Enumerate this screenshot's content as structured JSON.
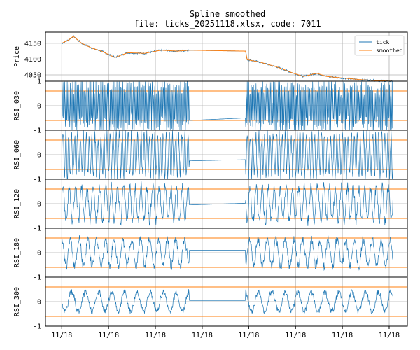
{
  "chart_data": {
    "type": "line",
    "title": "Spline smoothed",
    "subtitle": "file: ticks_20251118.xlsx, code: 7011",
    "x_tick_labels": [
      "11/18",
      "11/18",
      "11/18",
      "11/18",
      "11/18",
      "11/18",
      "11/18",
      "11/18"
    ],
    "legend": {
      "entries": [
        "tick",
        "smoothed"
      ],
      "placement": "upper right"
    },
    "colors": {
      "tick": "#1f77b4",
      "smoothed": "#ff7f0e",
      "threshold": "#ff7f0e",
      "grid": "#b0b0b0"
    },
    "price_panel": {
      "ylabel": "Price",
      "yticks": [
        4050,
        4100,
        4150
      ],
      "ylim": [
        4030,
        4185
      ],
      "session_break": [
        0.385,
        0.555
      ],
      "anchors": [
        [
          0.0,
          4150
        ],
        [
          0.02,
          4160
        ],
        [
          0.035,
          4172
        ],
        [
          0.06,
          4150
        ],
        [
          0.09,
          4135
        ],
        [
          0.12,
          4125
        ],
        [
          0.16,
          4105
        ],
        [
          0.2,
          4120
        ],
        [
          0.25,
          4118
        ],
        [
          0.3,
          4128
        ],
        [
          0.35,
          4125
        ],
        [
          0.385,
          4128
        ],
        [
          0.555,
          4125
        ],
        [
          0.56,
          4098
        ],
        [
          0.6,
          4090
        ],
        [
          0.65,
          4075
        ],
        [
          0.7,
          4055
        ],
        [
          0.73,
          4045
        ],
        [
          0.77,
          4055
        ],
        [
          0.8,
          4045
        ],
        [
          0.85,
          4040
        ],
        [
          0.9,
          4035
        ],
        [
          0.95,
          4032
        ],
        [
          1.0,
          4030
        ]
      ]
    },
    "rsi_panels": [
      {
        "ylabel": "RSI_030",
        "yticks": [
          -1,
          0,
          1
        ],
        "ylim": [
          -1,
          1
        ],
        "thresholds": [
          -0.6,
          0.6
        ],
        "flat_from": -0.6,
        "flat_to": -0.5,
        "wavelength": 0.004,
        "amplitude": 0.95,
        "seed": 30
      },
      {
        "ylabel": "RSI_060",
        "yticks": [
          -1,
          0,
          1
        ],
        "ylim": [
          -1,
          1
        ],
        "thresholds": [
          -0.6,
          0.6
        ],
        "flat_from": -0.25,
        "flat_to": -0.2,
        "wavelength": 0.009,
        "amplitude": 0.85,
        "seed": 60
      },
      {
        "ylabel": "RSI_120",
        "yticks": [
          -1,
          0,
          1
        ],
        "ylim": [
          -1,
          1
        ],
        "thresholds": [
          -0.6,
          0.6
        ],
        "flat_from": -0.05,
        "flat_to": 0.02,
        "wavelength": 0.018,
        "amplitude": 0.7,
        "seed": 120
      },
      {
        "ylabel": "RSI_180",
        "yticks": [
          -1,
          0,
          1
        ],
        "ylim": [
          -1,
          1
        ],
        "thresholds": [
          -0.6,
          0.6
        ],
        "flat_from": 0.1,
        "flat_to": 0.1,
        "wavelength": 0.026,
        "amplitude": 0.55,
        "seed": 180
      },
      {
        "ylabel": "RSI_300",
        "yticks": [
          -1,
          0,
          1
        ],
        "ylim": [
          -1,
          1
        ],
        "thresholds": [
          -0.6,
          0.6
        ],
        "flat_from": 0.05,
        "flat_to": 0.05,
        "wavelength": 0.04,
        "amplitude": 0.4,
        "seed": 300
      }
    ]
  }
}
